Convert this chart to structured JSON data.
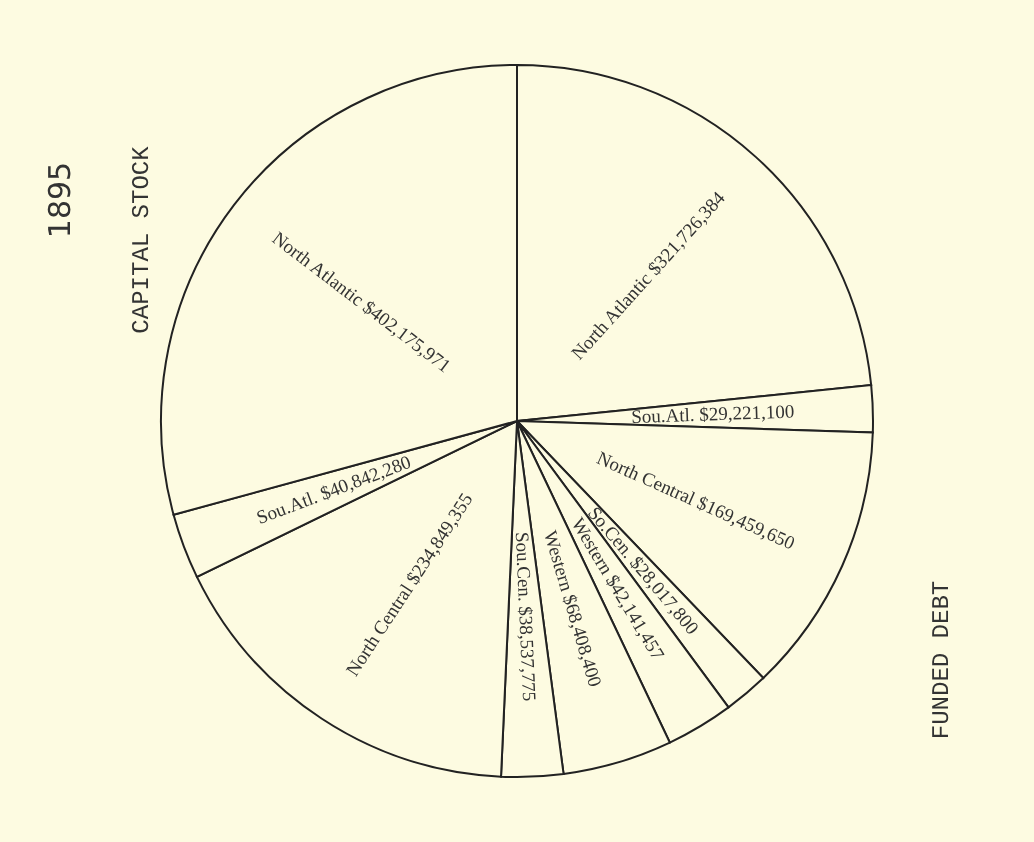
{
  "chart_data": {
    "type": "pie",
    "title": "1895",
    "categories": [
      "North Atlantic",
      "Sou.Atl.",
      "North Central",
      "So.Cen.",
      "Western",
      "Western",
      "Sou.Cen.",
      "North Central",
      "Sou.Atl.",
      "North Atlantic"
    ],
    "values": [
      321726384,
      29221100,
      169459650,
      28017800,
      42141457,
      68408400,
      38537775,
      234849355,
      40842280,
      402175971
    ],
    "value_labels": [
      "$321,726,384",
      "$29,221,100",
      "$169,459,650",
      "$28,017,800",
      "$42,141,457",
      "$68,408,400",
      "$38,537,775",
      "$234,849,355",
      "$40,842,280",
      "$402,175,971"
    ],
    "colors": [
      "#fdfbe1",
      "#fdfbe1",
      "#fdfbe1",
      "#fdfbe1",
      "#fdfbe1",
      "#fdfbe1",
      "#fdfbe1",
      "#fdfbe1",
      "#fdfbe1",
      "#fdfbe1"
    ],
    "annotations": [
      "CAPITAL STOCK",
      "FUNDED DEBT"
    ]
  }
}
